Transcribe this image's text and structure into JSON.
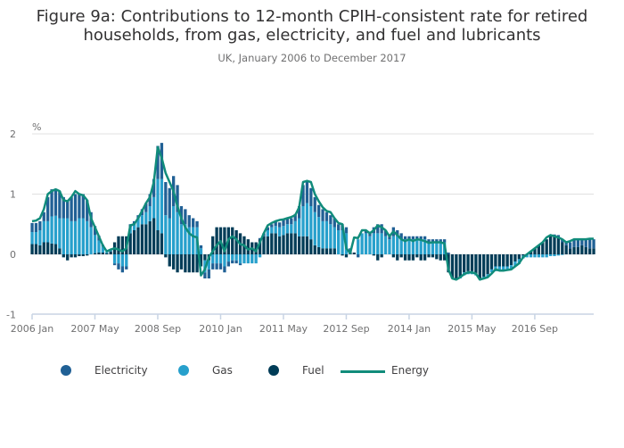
{
  "chart_data": {
    "type": "bar",
    "title": "Figure 9a: Contributions to 12-month CPIH-consistent rate for retired households, from gas, electricity, and fuel and lubricants",
    "title_lines": [
      "Figure 9a: Contributions to 12-month CPIH-consistent rate for retired",
      "households, from gas, electricity, and fuel and lubricants"
    ],
    "subtitle": "UK, January 2006 to December 2017",
    "ylabel": "%",
    "ylim": [
      -1,
      2
    ],
    "yticks": [
      2,
      1,
      0,
      -1
    ],
    "xtick_labels": [
      "2006 Jan",
      "2007 May",
      "2008 Sep",
      "2010 Jan",
      "2011 May",
      "2012 Sep",
      "2014 Jan",
      "2015 May",
      "2016 Sep"
    ],
    "xtick_month_index": [
      0,
      16,
      32,
      48,
      64,
      80,
      96,
      112,
      128
    ],
    "start": "2006 Jan",
    "end": "2017 Dec",
    "grid": true,
    "legend_position": "bottom",
    "colors": {
      "Electricity": "#206095",
      "Gas": "#27a0cc",
      "Fuel": "#003c57",
      "Energy": "#118c7b"
    },
    "series": [
      {
        "name": "Fuel",
        "kind": "bar",
        "values": [
          0.17,
          0.17,
          0.15,
          0.2,
          0.2,
          0.18,
          0.17,
          0.1,
          -0.05,
          -0.1,
          -0.05,
          -0.05,
          -0.03,
          -0.03,
          -0.02,
          0,
          0.02,
          0.03,
          0.03,
          0.02,
          0.05,
          0.2,
          0.3,
          0.3,
          0.3,
          0.35,
          0.4,
          0.45,
          0.5,
          0.5,
          0.55,
          0.6,
          0.4,
          0.35,
          -0.05,
          -0.2,
          -0.25,
          -0.3,
          -0.25,
          -0.3,
          -0.3,
          -0.3,
          -0.3,
          -0.2,
          -0.1,
          -0.1,
          0.3,
          0.45,
          0.45,
          0.45,
          0.45,
          0.45,
          0.4,
          0.35,
          0.3,
          0.25,
          0.2,
          0.2,
          0.25,
          0.3,
          0.3,
          0.35,
          0.35,
          0.3,
          0.32,
          0.35,
          0.35,
          0.35,
          0.3,
          0.3,
          0.3,
          0.25,
          0.15,
          0.12,
          0.1,
          0.1,
          0.1,
          0.1,
          0,
          -0.02,
          -0.05,
          0.05,
          0.03,
          0,
          0,
          0,
          0,
          -0.02,
          -0.1,
          -0.05,
          0,
          0,
          -0.05,
          -0.1,
          -0.05,
          -0.1,
          -0.1,
          -0.1,
          -0.05,
          -0.1,
          -0.1,
          -0.05,
          -0.05,
          -0.08,
          -0.1,
          -0.1,
          -0.3,
          -0.4,
          -0.42,
          -0.38,
          -0.3,
          -0.28,
          -0.28,
          -0.32,
          -0.4,
          -0.37,
          -0.33,
          -0.25,
          -0.2,
          -0.2,
          -0.2,
          -0.2,
          -0.18,
          -0.12,
          -0.08,
          -0.02,
          0,
          0.05,
          0.1,
          0.15,
          0.2,
          0.25,
          0.3,
          0.3,
          0.28,
          0.2,
          0.15,
          0.1,
          0.12,
          0.12,
          0.15,
          0.12,
          0.1,
          0.1
        ]
      },
      {
        "name": "Gas",
        "kind": "bar",
        "values": [
          0.2,
          0.2,
          0.25,
          0.35,
          0.35,
          0.45,
          0.47,
          0.5,
          0.6,
          0.6,
          0.55,
          0.55,
          0.6,
          0.6,
          0.55,
          0.45,
          0.3,
          0.2,
          0.1,
          0.02,
          0.03,
          -0.15,
          -0.15,
          -0.2,
          -0.2,
          0.1,
          0.1,
          0.15,
          0.15,
          0.2,
          0.25,
          0.35,
          0.85,
          0.9,
          0.65,
          0.6,
          0.8,
          0.7,
          0.5,
          0.5,
          0.45,
          0.45,
          0.45,
          0.1,
          -0.2,
          -0.15,
          -0.15,
          -0.15,
          -0.15,
          -0.2,
          -0.12,
          -0.1,
          -0.1,
          -0.15,
          -0.15,
          -0.15,
          -0.15,
          -0.15,
          -0.05,
          0,
          0.1,
          0.1,
          0.12,
          0.15,
          0.15,
          0.15,
          0.15,
          0.2,
          0.3,
          0.5,
          0.55,
          0.55,
          0.55,
          0.5,
          0.45,
          0.45,
          0.4,
          0.35,
          0.4,
          0.4,
          0.35,
          0,
          0,
          0.25,
          0.35,
          0.35,
          0.3,
          0.35,
          0.35,
          0.35,
          0.3,
          0.25,
          0.3,
          0.3,
          0.25,
          0.25,
          0.25,
          0.25,
          0.25,
          0.25,
          0.25,
          0.2,
          0.2,
          0.2,
          0.2,
          0.2,
          0,
          0,
          0,
          -0.02,
          -0.05,
          -0.05,
          -0.05,
          -0.03,
          -0.02,
          -0.03,
          -0.05,
          -0.05,
          -0.08,
          -0.08,
          -0.06,
          -0.06,
          -0.07,
          -0.08,
          -0.08,
          -0.05,
          -0.05,
          -0.05,
          -0.05,
          -0.05,
          -0.05,
          -0.05,
          -0.03,
          -0.03,
          -0.02,
          -0.01,
          0,
          0,
          0,
          0,
          0,
          0,
          0,
          0
        ]
      },
      {
        "name": "Electricity",
        "kind": "bar",
        "values": [
          0.15,
          0.15,
          0.15,
          0.15,
          0.4,
          0.45,
          0.45,
          0.45,
          0.35,
          0.3,
          0.4,
          0.45,
          0.4,
          0.4,
          0.35,
          0.25,
          0.15,
          0.08,
          0.03,
          0,
          0,
          -0.03,
          -0.1,
          -0.1,
          -0.05,
          0.05,
          0.05,
          0.05,
          0.1,
          0.15,
          0.2,
          0.3,
          0.55,
          0.6,
          0.55,
          0.5,
          0.5,
          0.45,
          0.3,
          0.25,
          0.2,
          0.15,
          0.1,
          0.05,
          -0.1,
          -0.15,
          -0.1,
          -0.1,
          -0.1,
          -0.1,
          -0.08,
          -0.05,
          -0.05,
          -0.03,
          0,
          0,
          0,
          0,
          0.02,
          0.05,
          0.05,
          0.05,
          0.08,
          0.08,
          0.1,
          0.1,
          0.1,
          0.12,
          0.2,
          0.35,
          0.35,
          0.3,
          0.25,
          0.2,
          0.2,
          0.15,
          0.15,
          0.15,
          0.1,
          0.1,
          0.1,
          0.05,
          0,
          -0.05,
          0,
          0.05,
          0.05,
          0.1,
          0.15,
          0.15,
          0.1,
          0.05,
          0.15,
          0.1,
          0.1,
          0.05,
          0.05,
          0.05,
          0.05,
          0.05,
          0.05,
          0.05,
          0.05,
          0.05,
          0.05,
          0.05,
          0.03,
          0,
          0,
          0,
          0,
          0,
          0,
          0,
          0,
          0,
          0,
          0,
          0,
          0,
          0,
          0,
          0,
          0,
          0,
          0,
          0,
          0,
          0,
          0,
          0,
          0,
          0.02,
          0.03,
          0.04,
          0.05,
          0.05,
          0.1,
          0.12,
          0.12,
          0.1,
          0.12,
          0.15,
          0.15
        ]
      },
      {
        "name": "Energy",
        "kind": "line",
        "values": [
          0.55,
          0.56,
          0.6,
          0.75,
          1.0,
          1.05,
          1.08,
          1.05,
          0.9,
          0.88,
          0.95,
          1.05,
          1.0,
          0.98,
          0.9,
          0.6,
          0.45,
          0.3,
          0.15,
          0.05,
          0.08,
          0.1,
          0.08,
          0.05,
          0.1,
          0.48,
          0.5,
          0.6,
          0.72,
          0.85,
          0.95,
          1.2,
          1.78,
          1.6,
          1.35,
          1.2,
          1.05,
          0.8,
          0.6,
          0.45,
          0.35,
          0.3,
          0.28,
          -0.35,
          -0.25,
          -0.05,
          0.05,
          0.15,
          0.22,
          0.05,
          0.25,
          0.3,
          0.25,
          0.17,
          0.15,
          0.08,
          0.1,
          0.05,
          0.2,
          0.35,
          0.48,
          0.52,
          0.55,
          0.57,
          0.58,
          0.6,
          0.62,
          0.65,
          0.78,
          1.2,
          1.22,
          1.2,
          1.0,
          0.88,
          0.78,
          0.72,
          0.7,
          0.6,
          0.52,
          0.5,
          0.1,
          0.02,
          0.28,
          0.27,
          0.4,
          0.4,
          0.35,
          0.4,
          0.48,
          0.45,
          0.4,
          0.3,
          0.38,
          0.32,
          0.25,
          0.22,
          0.25,
          0.22,
          0.25,
          0.24,
          0.22,
          0.19,
          0.2,
          0.2,
          0.2,
          0.18,
          -0.25,
          -0.4,
          -0.42,
          -0.38,
          -0.33,
          -0.3,
          -0.3,
          -0.32,
          -0.42,
          -0.4,
          -0.38,
          -0.32,
          -0.25,
          -0.27,
          -0.27,
          -0.26,
          -0.25,
          -0.2,
          -0.15,
          -0.05,
          0,
          0.05,
          0.1,
          0.15,
          0.2,
          0.28,
          0.32,
          0.3,
          0.28,
          0.25,
          0.2,
          0.22,
          0.25,
          0.25,
          0.25,
          0.25,
          0.26,
          0.26
        ]
      }
    ]
  }
}
